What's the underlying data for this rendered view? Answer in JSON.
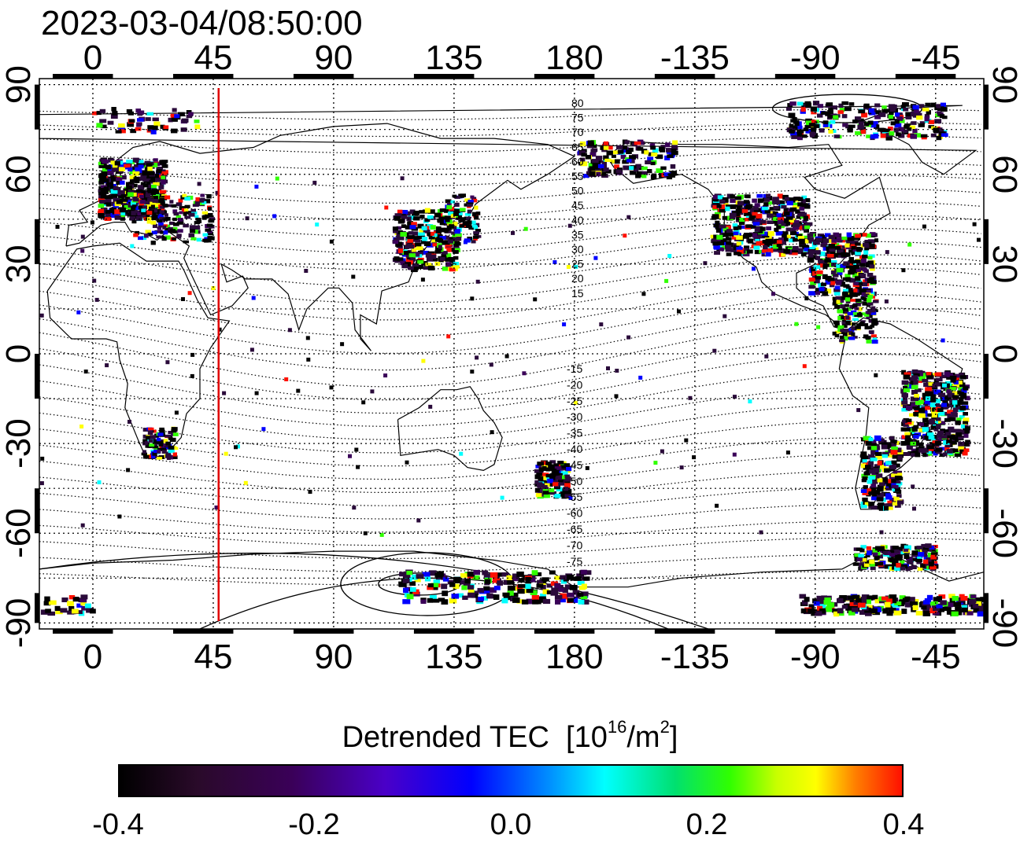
{
  "timestamp": "2023-03-04/08:50:00",
  "map": {
    "lon_labels": [
      "0",
      "45",
      "90",
      "135",
      "180",
      "-135",
      "-90",
      "-45"
    ],
    "lon_values": [
      0,
      45,
      90,
      135,
      180,
      225,
      270,
      315
    ],
    "lat_labels": [
      "90",
      "60",
      "30",
      "0",
      "-30",
      "-60",
      "-90"
    ],
    "lat_values": [
      90,
      60,
      30,
      0,
      -30,
      -60,
      -90
    ],
    "lon_range": [
      -20,
      333
    ],
    "lat_range": [
      -92,
      92
    ],
    "marker_meridian_lon": 47,
    "marker_color": "#e00000",
    "magnetic_lat_labels_north": [
      "80",
      "75",
      "70",
      "65",
      "60",
      "55",
      "50",
      "45",
      "40",
      "35",
      "30",
      "25",
      "20",
      "15"
    ],
    "magnetic_lat_labels_south": [
      "-15",
      "-20",
      "-25",
      "-30",
      "-35",
      "-40",
      "-45",
      "-50",
      "-55",
      "-60",
      "-65",
      "-70",
      "-75"
    ]
  },
  "colorbar": {
    "title": "Detrended TEC",
    "unit_base": "[10",
    "unit_exp1": "16",
    "unit_mid": "/m",
    "unit_exp2": "2",
    "unit_end": "]",
    "ticks": [
      "-0.4",
      "-0.2",
      "0.0",
      "0.2",
      "0.4"
    ],
    "min": -0.4,
    "max": 0.4,
    "colors": [
      "#000000",
      "#3a0058",
      "#0000ff",
      "#00ffff",
      "#30ff00",
      "#ffff00",
      "#ff1000"
    ]
  }
}
